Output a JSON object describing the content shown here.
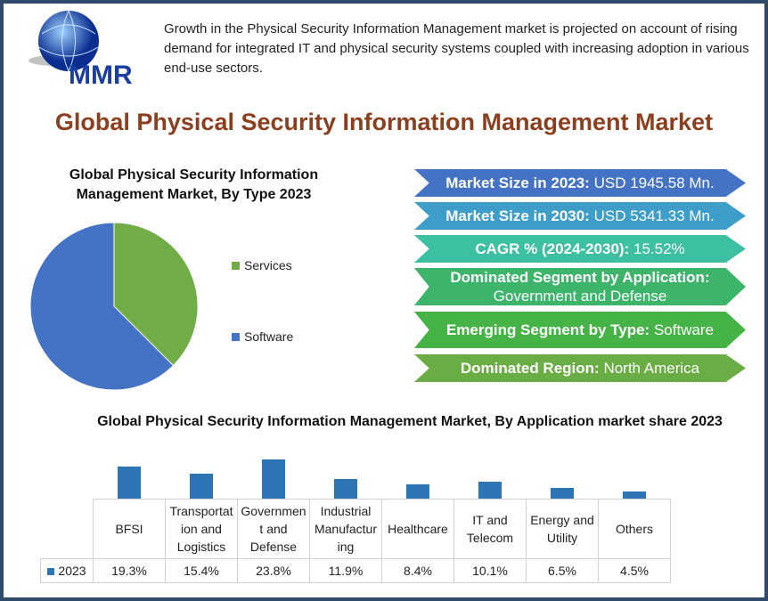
{
  "logo": {
    "text": "MMR"
  },
  "intro": "Growth in the Physical Security Information Management market is projected on account of rising demand for integrated IT and physical security systems coupled with increasing adoption in various end-use sectors.",
  "title": "Global Physical Security Information Management Market",
  "highlights": [
    {
      "label": "Market Size in 2023:",
      "value": "USD 1945.58 Mn.",
      "color": "#4472c4"
    },
    {
      "label": "Market Size in 2030:",
      "value": "USD 5341.33 Mn.",
      "color": "#3d9ec9"
    },
    {
      "label": "CAGR % (2024-2030):",
      "value": "15.52%",
      "color": "#3dbfa2"
    },
    {
      "label": "Dominated Segment by Application:",
      "value": "Government and Defense",
      "color": "#3cb56a"
    },
    {
      "label": "Emerging Segment by Type:",
      "value": "Software",
      "color": "#46b346"
    },
    {
      "label": "Dominated Region:",
      "value": "North America",
      "color": "#6aad45"
    }
  ],
  "chart_data": [
    {
      "type": "pie",
      "title": "Global Physical Security Information Management Market, By Type 2023",
      "categories": [
        "Services",
        "Software"
      ],
      "values": [
        37.5,
        62.5
      ],
      "colors": [
        "#70ad47",
        "#4472c4"
      ],
      "legend": "right"
    },
    {
      "type": "bar",
      "title": "Global Physical Security Information Management Market, By Application market share  2023",
      "categories": [
        "BFSI",
        "Transportation and Logistics",
        "Government and Defense",
        "Industrial Manufacturing",
        "Healthcare",
        "IT and Telecom",
        "Energy and Utility",
        "Others"
      ],
      "category_labels": [
        "BFSI",
        "Transportat ion and Logistics",
        "Governmen t and Defense",
        "Industrial Manufactur ing",
        "Healthcare",
        "IT and Telecom",
        "Energy and Utility",
        "Others"
      ],
      "series": [
        {
          "name": "2023",
          "values": [
            19.3,
            15.4,
            23.8,
            11.9,
            8.4,
            10.1,
            6.5,
            4.5
          ],
          "labels": [
            "19.3%",
            "15.4%",
            "23.8%",
            "11.9%",
            "8.4%",
            "10.1%",
            "6.5%",
            "4.5%"
          ],
          "color": "#2e75b6"
        }
      ],
      "data_table": true
    }
  ]
}
